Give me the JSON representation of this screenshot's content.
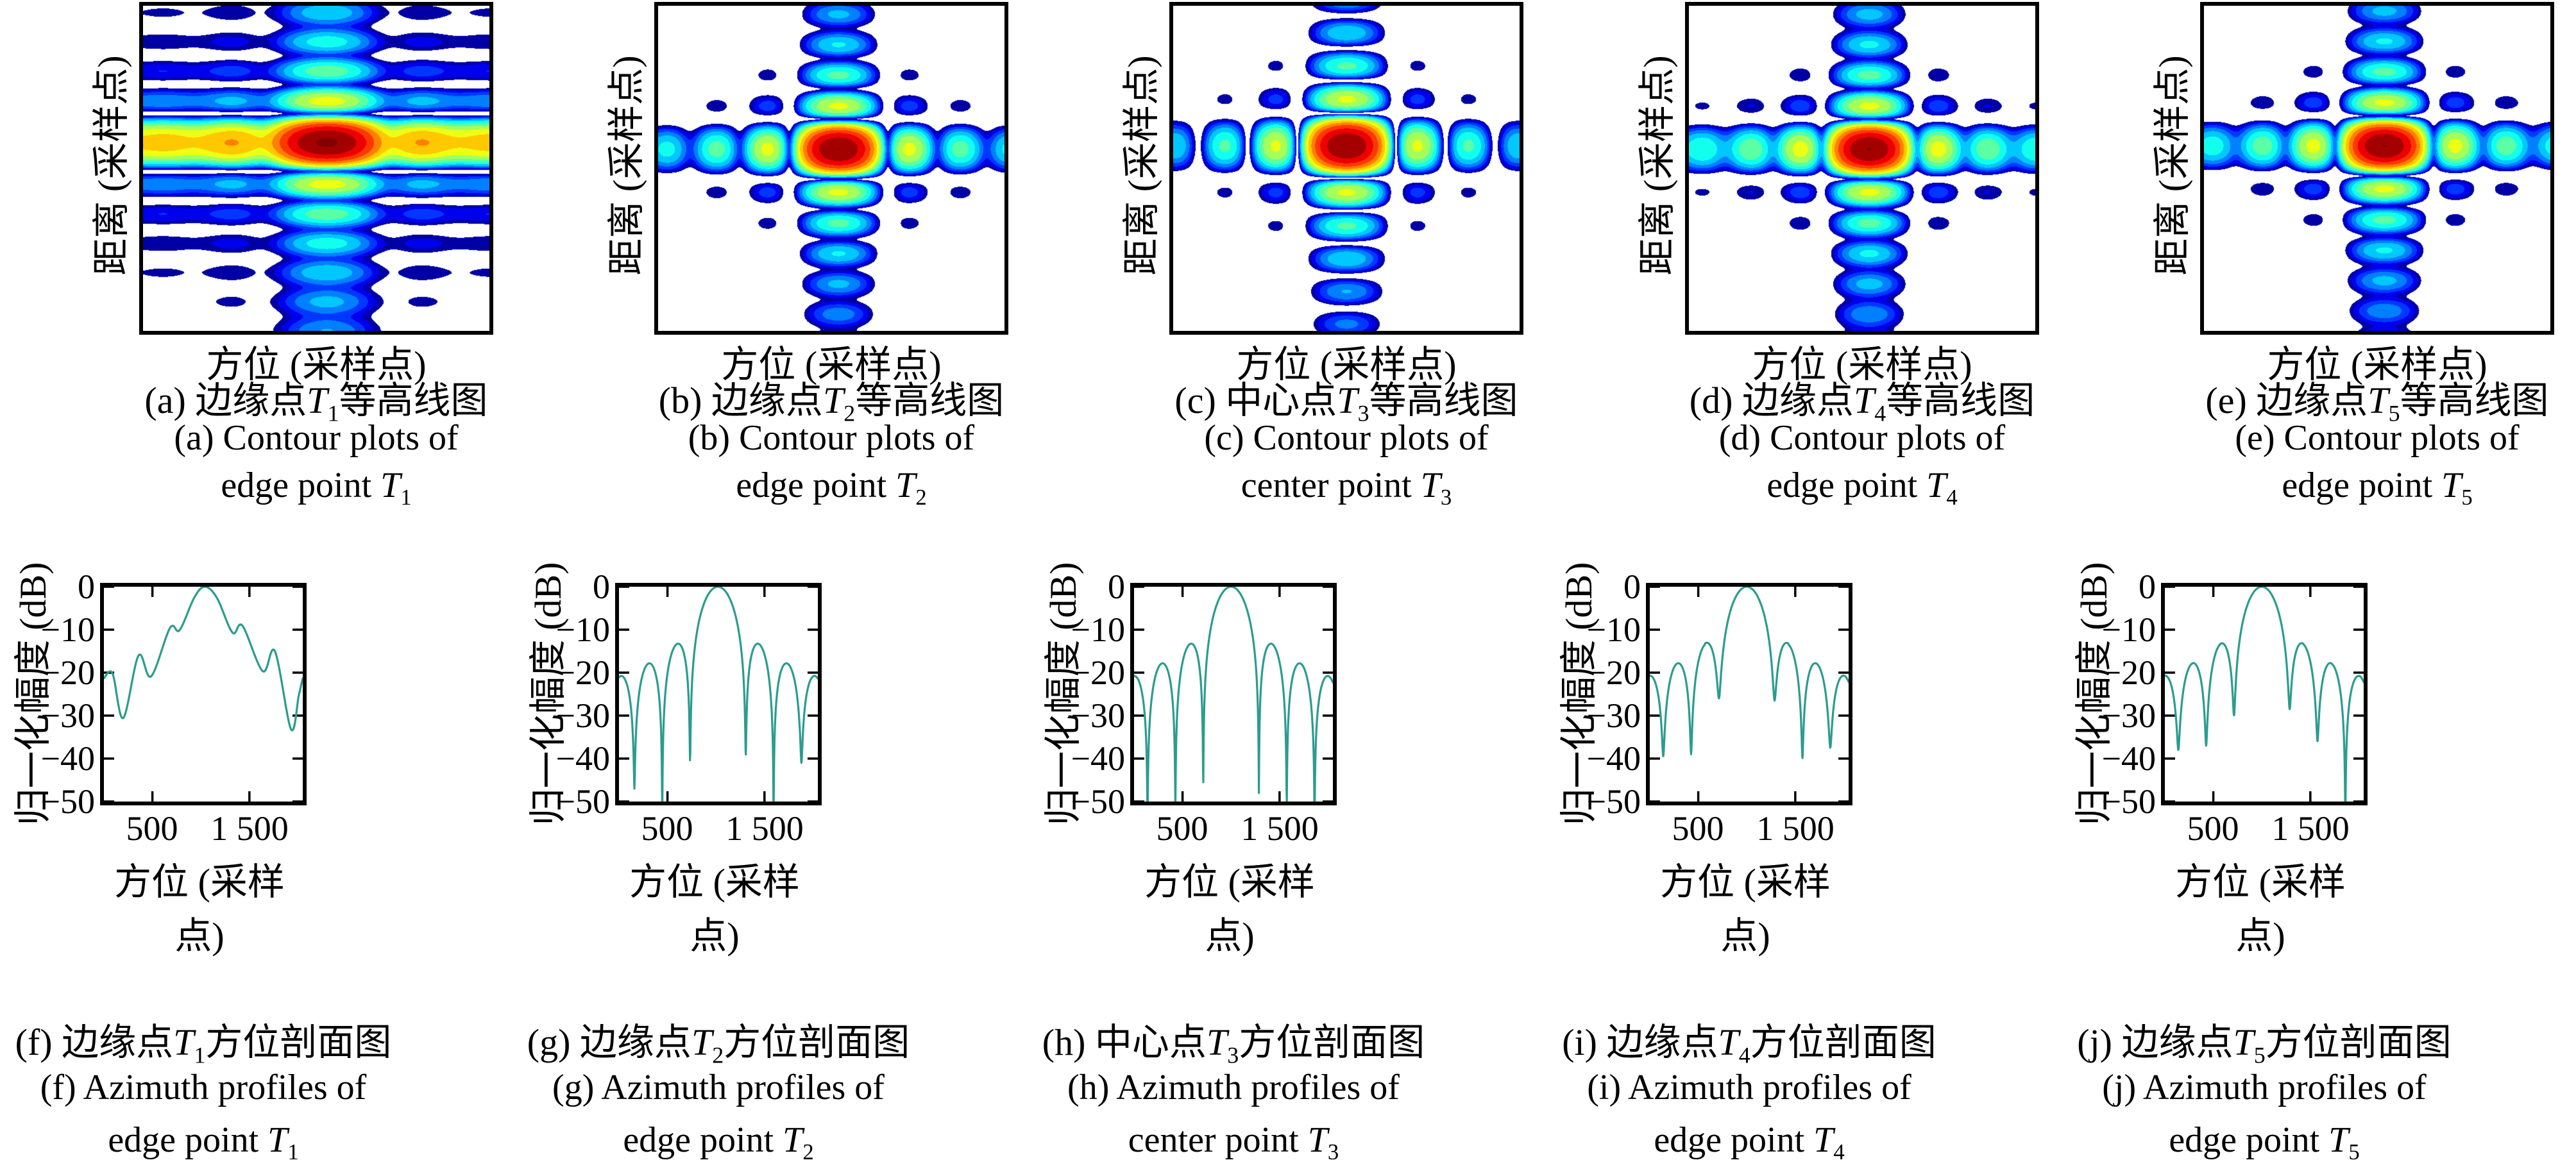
{
  "figure": {
    "axes": {
      "contour_xlabel": "方位 (采样点)",
      "contour_ylabel": "距离 (采样点)",
      "profile_xlabel": "方位 (采样点)",
      "profile_ylabel": "归一化幅度 (dB)"
    }
  },
  "chart_data": {
    "contours": [
      {
        "id": "a",
        "type": "heatmap",
        "colormap": "jet",
        "pattern": "2d-sinc point target response, azimuth defocused (wide smeared mainlobe, continuous horizontal bands)",
        "xlabel": "方位 (采样点)",
        "ylabel": "距离 (采样点)",
        "params": {
          "az_halfwidth_nulls": 2.6,
          "rg_halfwidth_nulls": 5.6,
          "az_null_fill_db": -11,
          "rg_null_fill_db": -26,
          "center_x_frac": 0.53,
          "center_y_frac": 0.42,
          "display_floor_db": -32,
          "levels": 14
        },
        "caption": {
          "zh_prefix": "(a) 边缘点",
          "symbol": "T",
          "sub": "1",
          "zh_suffix": "等高线图",
          "en_line1": "(a) Contour plots of",
          "en_line2_prefix": "edge point "
        }
      },
      {
        "id": "b",
        "type": "heatmap",
        "colormap": "jet",
        "pattern": "2d-sinc point target response, focused cross pattern",
        "xlabel": "方位 (采样点)",
        "ylabel": "距离 (采样点)",
        "params": {
          "az_halfwidth_nulls": 3.5,
          "rg_halfwidth_nulls": 5.4,
          "az_null_fill_db": -26,
          "rg_null_fill_db": -30,
          "center_x_frac": 0.52,
          "center_y_frac": 0.44,
          "display_floor_db": -32,
          "levels": 14
        },
        "caption": {
          "zh_prefix": "(b) 边缘点",
          "symbol": "T",
          "sub": "2",
          "zh_suffix": "等高线图",
          "en_line1": "(b) Contour plots of",
          "en_line2_prefix": "edge point "
        }
      },
      {
        "id": "c",
        "type": "heatmap",
        "colormap": "jet",
        "pattern": "2d-sinc point target response, well focused center point",
        "xlabel": "方位 (采样点)",
        "ylabel": "距离 (采样点)",
        "params": {
          "az_halfwidth_nulls": 3.5,
          "rg_halfwidth_nulls": 5.0,
          "az_null_fill_db": -35,
          "rg_null_fill_db": -35,
          "center_x_frac": 0.5,
          "center_y_frac": 0.43,
          "display_floor_db": -32,
          "levels": 14
        },
        "caption": {
          "zh_prefix": "(c) 中心点",
          "symbol": "T",
          "sub": "3",
          "zh_suffix": "等高线图",
          "en_line1": "(c) Contour plots of",
          "en_line2_prefix": "center point "
        }
      },
      {
        "id": "d",
        "type": "heatmap",
        "colormap": "jet",
        "pattern": "2d-sinc point target response, focused cross pattern",
        "xlabel": "方位 (采样点)",
        "ylabel": "距离 (采样点)",
        "params": {
          "az_halfwidth_nulls": 3.6,
          "rg_halfwidth_nulls": 5.4,
          "az_null_fill_db": -22,
          "rg_null_fill_db": -28,
          "center_x_frac": 0.52,
          "center_y_frac": 0.44,
          "display_floor_db": -32,
          "levels": 14
        },
        "caption": {
          "zh_prefix": "(d) 边缘点",
          "symbol": "T",
          "sub": "4",
          "zh_suffix": "等高线图",
          "en_line1": "(d) Contour plots of",
          "en_line2_prefix": "edge point "
        }
      },
      {
        "id": "e",
        "type": "heatmap",
        "colormap": "jet",
        "pattern": "2d-sinc point target response, focused cross pattern",
        "xlabel": "方位 (采样点)",
        "ylabel": "距离 (采样点)",
        "params": {
          "az_halfwidth_nulls": 3.5,
          "rg_halfwidth_nulls": 5.4,
          "az_null_fill_db": -24,
          "rg_null_fill_db": -29,
          "center_x_frac": 0.52,
          "center_y_frac": 0.43,
          "display_floor_db": -32,
          "levels": 14
        },
        "caption": {
          "zh_prefix": "(e) 边缘点",
          "symbol": "T",
          "sub": "5",
          "zh_suffix": "等高线图",
          "en_line1": "(e) Contour plots of",
          "en_line2_prefix": "edge point "
        }
      }
    ],
    "profiles": [
      {
        "id": "f",
        "type": "line",
        "line_color": "#2b9c8e",
        "xlabel": "方位 (采样点)",
        "ylabel": "归一化幅度 (dB)",
        "xlim": [
          0,
          2050
        ],
        "ylim": [
          -50,
          0
        ],
        "xticks": {
          "values": [
            500,
            1500
          ],
          "labels": [
            "500",
            "1 500"
          ]
        },
        "yticks": {
          "values": [
            0,
            -10,
            -20,
            -30,
            -40,
            -50
          ],
          "labels": [
            "0",
            "−10",
            "−20",
            "−30",
            "−40",
            "−50"
          ]
        },
        "model": "points",
        "points": [
          [
            0,
            -21.3
          ],
          [
            89,
            -20.2
          ],
          [
            199,
            -30.6
          ],
          [
            357,
            -16.0
          ],
          [
            486,
            -20.9
          ],
          [
            681,
            -9.6
          ],
          [
            781,
            -10.1
          ],
          [
            930,
            -2.6
          ],
          [
            1040,
            0
          ],
          [
            1165,
            -2.6
          ],
          [
            1326,
            -10.7
          ],
          [
            1429,
            -9.1
          ],
          [
            1638,
            -19.7
          ],
          [
            1763,
            -15.0
          ],
          [
            1929,
            -33.2
          ],
          [
            2009,
            -25.3
          ],
          [
            2050,
            -21.3
          ]
        ],
        "features": {
          "peak_x": 1040,
          "peak_db": 0,
          "shoulder_db": -9.6,
          "note": "defocused broad mainlobe with merged -10 dB shoulders"
        },
        "caption": {
          "zh_prefix": "(f) 边缘点",
          "symbol": "T",
          "sub": "1",
          "zh_suffix": "方位剖面图",
          "en_line1": "(f) Azimuth profiles of",
          "en_line2_prefix": "edge point "
        }
      },
      {
        "id": "g",
        "type": "line",
        "line_color": "#2b9c8e",
        "xlabel": "方位 (采样点)",
        "ylabel": "归一化幅度 (dB)",
        "xlim": [
          0,
          2050
        ],
        "ylim": [
          -50,
          0
        ],
        "xticks": {
          "values": [
            500,
            1500
          ],
          "labels": [
            "500",
            "1 500"
          ]
        },
        "yticks": {
          "values": [
            0,
            -10,
            -20,
            -30,
            -40,
            -50
          ],
          "labels": [
            "0",
            "−10",
            "−20",
            "−30",
            "−40",
            "−50"
          ]
        },
        "model": "sinc",
        "model_params": {
          "peak_x": 1020,
          "null_spacing": 287,
          "null_fill_left_db": [
            -41,
            -55,
            -47
          ],
          "null_fill_right_db": [
            -39.5,
            -55,
            -41
          ],
          "default_fill_db": -55
        },
        "features": {
          "peak_db": 0,
          "first_sidelobe_db": -13.3,
          "second_sidelobe_db": -17.8,
          "third_sidelobe_db": -20.5
        },
        "caption": {
          "zh_prefix": "(g) 边缘点",
          "symbol": "T",
          "sub": "2",
          "zh_suffix": "方位剖面图",
          "en_line1": "(g) Azimuth profiles of",
          "en_line2_prefix": "edge point "
        }
      },
      {
        "id": "h",
        "type": "line",
        "line_color": "#2b9c8e",
        "xlabel": "方位 (采样点)",
        "ylabel": "归一化幅度 (dB)",
        "xlim": [
          0,
          2050
        ],
        "ylim": [
          -50,
          0
        ],
        "xticks": {
          "values": [
            500,
            1500
          ],
          "labels": [
            "500",
            "1 500"
          ]
        },
        "yticks": {
          "values": [
            0,
            -10,
            -20,
            -30,
            -40,
            -50
          ],
          "labels": [
            "0",
            "−10",
            "−20",
            "−30",
            "−40",
            "−50"
          ]
        },
        "model": "sinc",
        "model_params": {
          "peak_x": 1000,
          "null_spacing": 287,
          "null_fill_left_db": [
            -48,
            -52,
            -55
          ],
          "null_fill_right_db": [
            -48,
            -52,
            -55
          ],
          "default_fill_db": -55
        },
        "features": {
          "peak_db": 0,
          "first_sidelobe_db": -13.3,
          "second_sidelobe_db": -17.8,
          "third_sidelobe_db": -20.5
        },
        "caption": {
          "zh_prefix": "(h) 中心点",
          "symbol": "T",
          "sub": "3",
          "zh_suffix": "方位剖面图",
          "en_line1": "(h) Azimuth profiles of",
          "en_line2_prefix": "center point "
        }
      },
      {
        "id": "i",
        "type": "line",
        "line_color": "#2b9c8e",
        "xlabel": "方位 (采样点)",
        "ylabel": "归一化幅度 (dB)",
        "xlim": [
          0,
          2050
        ],
        "ylim": [
          -50,
          0
        ],
        "xticks": {
          "values": [
            500,
            1500
          ],
          "labels": [
            "500",
            "1 500"
          ]
        },
        "yticks": {
          "values": [
            0,
            -10,
            -20,
            -30,
            -40,
            -50
          ],
          "labels": [
            "0",
            "−10",
            "−20",
            "−30",
            "−40",
            "−50"
          ]
        },
        "model": "sinc",
        "model_params": {
          "peak_x": 1000,
          "null_spacing": 287,
          "null_fill_left_db": [
            -26,
            -39,
            -39.5
          ],
          "null_fill_right_db": [
            -26.5,
            -40,
            -37.5
          ],
          "default_fill_db": -37
        },
        "features": {
          "peak_db": 0,
          "first_sidelobe_db": -13.5,
          "second_sidelobe_db": -18.5,
          "shallow_first_nulls_db": -26
        },
        "caption": {
          "zh_prefix": "(i) 边缘点",
          "symbol": "T",
          "sub": "4",
          "zh_suffix": "方位剖面图",
          "en_line1": "(i) Azimuth profiles of",
          "en_line2_prefix": "edge point "
        }
      },
      {
        "id": "j",
        "type": "line",
        "line_color": "#2b9c8e",
        "xlabel": "方位 (采样点)",
        "ylabel": "归一化幅度 (dB)",
        "xlim": [
          0,
          2050
        ],
        "ylim": [
          -50,
          0
        ],
        "xticks": {
          "values": [
            500,
            1500
          ],
          "labels": [
            "500",
            "1 500"
          ]
        },
        "yticks": {
          "values": [
            0,
            -10,
            -20,
            -30,
            -40,
            -50
          ],
          "labels": [
            "0",
            "−10",
            "−20",
            "−30",
            "−40",
            "−50"
          ]
        },
        "model": "sinc",
        "model_params": {
          "peak_x": 1000,
          "null_spacing": 287,
          "null_fill_left_db": [
            -30,
            -37,
            -38
          ],
          "null_fill_right_db": [
            -28.5,
            -36,
            -55
          ],
          "default_fill_db": -38
        },
        "features": {
          "peak_db": 0,
          "first_sidelobe_db": -13.3,
          "second_sidelobe_db": -17.5,
          "shallow_first_nulls_db": -29
        },
        "caption": {
          "zh_prefix": "(j) 边缘点",
          "symbol": "T",
          "sub": "5",
          "zh_suffix": "方位剖面图",
          "en_line1": "(j) Azimuth profiles of",
          "en_line2_prefix": "edge point "
        }
      }
    ]
  }
}
